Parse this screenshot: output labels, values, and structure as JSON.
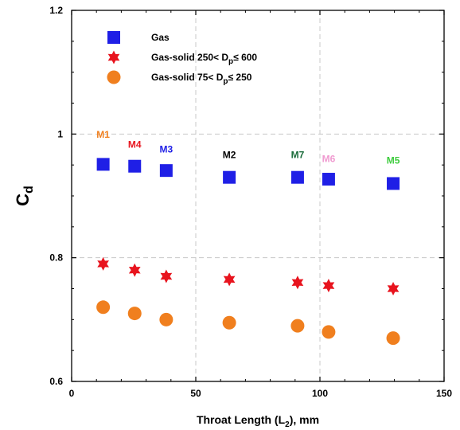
{
  "chart_data": {
    "type": "scatter",
    "title": "",
    "xlabel": {
      "pre": "Throat Length (L",
      "sub": "2",
      "post": "), mm"
    },
    "ylabel": {
      "main": "C",
      "sub": "d"
    },
    "xlim": [
      0,
      150
    ],
    "ylim": [
      0.6,
      1.2
    ],
    "xticks": [
      0,
      50,
      100,
      150
    ],
    "yticks": [
      0.6,
      0.8,
      1,
      1.2
    ],
    "xtick_labels": [
      "0",
      "50",
      "100",
      "150"
    ],
    "ytick_labels": [
      "0.6",
      "0.8",
      "1",
      "1.2"
    ],
    "grid": "dashed at x=50,100 and y=0.8,1.0",
    "legend_position": "top-left",
    "series": [
      {
        "name": "Gas",
        "marker": "square",
        "color": "#1f1fe6",
        "x": [
          12.7,
          25.4,
          38.1,
          63.5,
          91.0,
          103.5,
          129.5
        ],
        "y": [
          0.951,
          0.948,
          0.941,
          0.93,
          0.93,
          0.927,
          0.92
        ]
      },
      {
        "name": {
          "pre": "Gas-solid  250< D",
          "sub": "p",
          "post": "≤ 600"
        },
        "marker": "star6",
        "color": "#e8141e",
        "x": [
          12.7,
          25.4,
          38.1,
          63.5,
          91.0,
          103.5,
          129.5
        ],
        "y": [
          0.79,
          0.78,
          0.77,
          0.765,
          0.76,
          0.755,
          0.75
        ]
      },
      {
        "name": {
          "pre": "Gas-solid  75< D",
          "sub": "p",
          "post": "≤ 250"
        },
        "marker": "circle",
        "color": "#f07f1e",
        "x": [
          12.7,
          25.4,
          38.1,
          63.5,
          91.0,
          103.5,
          129.5
        ],
        "y": [
          0.72,
          0.71,
          0.7,
          0.695,
          0.69,
          0.68,
          0.67
        ]
      }
    ],
    "annotations": [
      {
        "text": "M1",
        "x": 12.7,
        "y": 0.994,
        "color": "#f07f1e"
      },
      {
        "text": "M4",
        "x": 25.4,
        "y": 0.978,
        "color": "#e8141e"
      },
      {
        "text": "M3",
        "x": 38.1,
        "y": 0.97,
        "color": "#1f1fe6"
      },
      {
        "text": "M2",
        "x": 63.5,
        "y": 0.961,
        "color": "#000000"
      },
      {
        "text": "M7",
        "x": 91.0,
        "y": 0.961,
        "color": "#1a6b3a"
      },
      {
        "text": "M6",
        "x": 103.5,
        "y": 0.955,
        "color": "#f09ad0"
      },
      {
        "text": "M5",
        "x": 129.5,
        "y": 0.952,
        "color": "#3dcc3d"
      }
    ]
  }
}
